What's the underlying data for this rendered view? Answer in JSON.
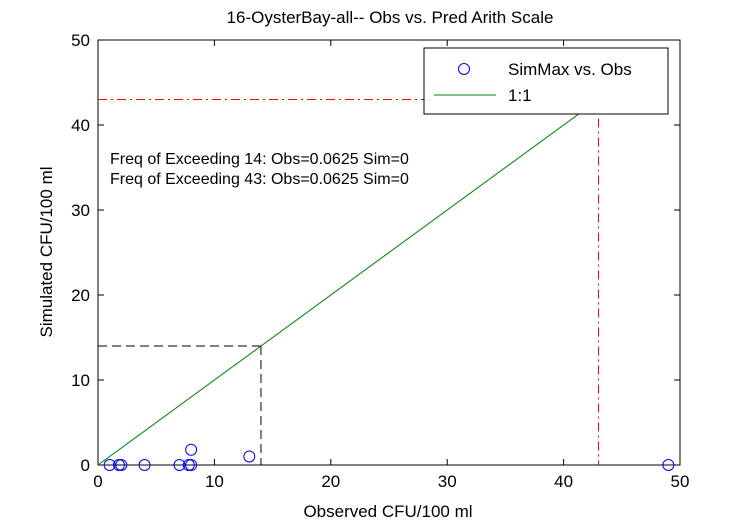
{
  "chart_data": {
    "type": "scatter",
    "title": "16-OysterBay-all-- Obs vs. Pred Arith Scale",
    "xlabel": "Observed CFU/100 ml",
    "ylabel": "Simulated CFU/100 ml",
    "xlim": [
      0,
      50
    ],
    "ylim": [
      0,
      50
    ],
    "xticks": [
      0,
      10,
      20,
      30,
      40,
      50
    ],
    "yticks": [
      0,
      10,
      20,
      30,
      40,
      50
    ],
    "grid": false,
    "legend_position": "top-right",
    "series": [
      {
        "name": "SimMax vs. Obs",
        "marker": "circle",
        "color": "#0000ff",
        "points": [
          {
            "x": 1,
            "y": 0
          },
          {
            "x": 1.8,
            "y": 0
          },
          {
            "x": 2,
            "y": 0
          },
          {
            "x": 4,
            "y": 0
          },
          {
            "x": 7,
            "y": 0
          },
          {
            "x": 7.8,
            "y": 0
          },
          {
            "x": 8,
            "y": 0
          },
          {
            "x": 8,
            "y": 1.8
          },
          {
            "x": 13,
            "y": 1
          },
          {
            "x": 49,
            "y": 0
          }
        ]
      },
      {
        "name": "1:1",
        "line": "solid",
        "color": "#008000",
        "points": [
          {
            "x": 0,
            "y": 0
          },
          {
            "x": 49,
            "y": 49
          }
        ]
      }
    ],
    "threshold_lines": [
      {
        "value": 14,
        "color": "#000000",
        "style": "dashed"
      },
      {
        "value": 43,
        "color": "#ff0000",
        "style": "dash-dot"
      }
    ],
    "annotations": [
      "Freq of Exceeding 14: Obs=0.0625 Sim=0",
      "Freq of Exceeding 43: Obs=0.0625 Sim=0"
    ]
  }
}
